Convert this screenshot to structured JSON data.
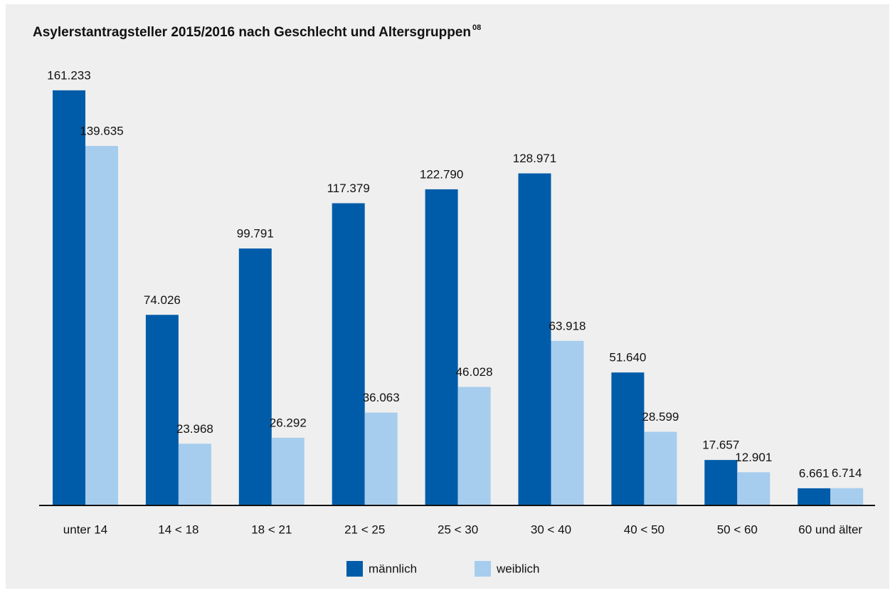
{
  "chart_data": {
    "type": "bar",
    "title": "Asylerstantragsteller 2015/2016 nach Geschlecht und Altersgruppen",
    "title_footnote": "08",
    "categories": [
      "unter 14",
      "14 < 18",
      "18 < 21",
      "21 < 25",
      "25 < 30",
      "30 < 40",
      "40 < 50",
      "50 < 60",
      "60 und älter"
    ],
    "series": [
      {
        "name": "männlich",
        "color": "#005ca9",
        "values": [
          161233,
          74026,
          99791,
          117379,
          122790,
          128971,
          51640,
          17657,
          6661
        ],
        "value_labels": [
          "161.233",
          "74.026",
          "99.791",
          "117.379",
          "122.790",
          "128.971",
          "51.640",
          "17.657",
          "6.661"
        ]
      },
      {
        "name": "weiblich",
        "color": "#a6cdee",
        "values": [
          139635,
          23968,
          26292,
          36063,
          46028,
          63918,
          28599,
          12901,
          6714
        ],
        "value_labels": [
          "139.635",
          "23.968",
          "26.292",
          "36.063",
          "46.028",
          "63.918",
          "28.599",
          "12.901",
          "6.714"
        ]
      }
    ],
    "ylim": [
      0,
      180000
    ],
    "grid": false,
    "legend": "bottom"
  }
}
